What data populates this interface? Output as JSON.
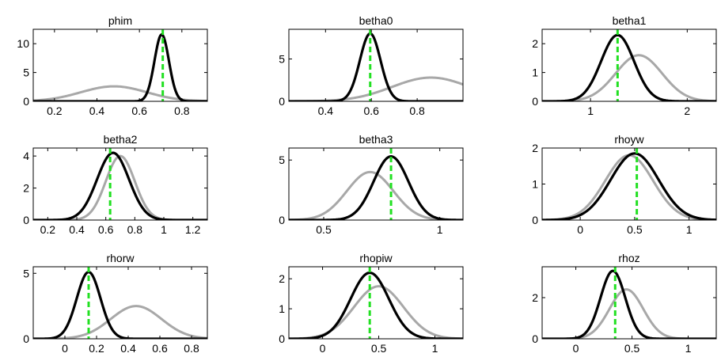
{
  "colors": {
    "posterior": "#000000",
    "prior": "#a8a8a8",
    "mode": "#22e022"
  },
  "chart_data": [
    {
      "type": "line",
      "title": "phim",
      "xlim": [
        0.1,
        0.92
      ],
      "ylim": [
        0,
        12.5
      ],
      "xticks": [
        0.2,
        0.4,
        0.6,
        0.8
      ],
      "xtick_labels": [
        "0.2",
        "0.4",
        "0.6",
        "0.8"
      ],
      "yticks": [
        0,
        5,
        10
      ],
      "ytick_labels": [
        "0",
        "5",
        "10"
      ],
      "mode_line": 0.71,
      "series": [
        {
          "role": "prior",
          "kind": "gauss",
          "mu": 0.48,
          "sigma": 0.155,
          "peak": 2.6
        },
        {
          "role": "posterior",
          "kind": "gauss",
          "mu": 0.705,
          "sigma": 0.034,
          "peak": 11.6
        }
      ]
    },
    {
      "type": "line",
      "title": "betha0",
      "xlim": [
        0.24,
        1.0
      ],
      "ylim": [
        0,
        8.5
      ],
      "xticks": [
        0.4,
        0.6,
        0.8
      ],
      "xtick_labels": [
        "0.4",
        "0.6",
        "0.8"
      ],
      "yticks": [
        0,
        5
      ],
      "ytick_labels": [
        "0",
        "5"
      ],
      "mode_line": 0.595,
      "series": [
        {
          "role": "prior",
          "kind": "gauss",
          "mu": 0.86,
          "sigma": 0.17,
          "peak": 2.8
        },
        {
          "role": "posterior",
          "kind": "gauss",
          "mu": 0.595,
          "sigma": 0.045,
          "peak": 8.0
        }
      ]
    },
    {
      "type": "line",
      "title": "betha1",
      "xlim": [
        0.5,
        2.3
      ],
      "ylim": [
        0,
        2.5
      ],
      "xticks": [
        1,
        2
      ],
      "xtick_labels": [
        "1",
        "2"
      ],
      "yticks": [
        0,
        1,
        2
      ],
      "ytick_labels": [
        "0",
        "1",
        "2"
      ],
      "mode_line": 1.28,
      "series": [
        {
          "role": "prior",
          "kind": "gauss",
          "mu": 1.5,
          "sigma": 0.24,
          "peak": 1.6
        },
        {
          "role": "posterior",
          "kind": "gauss",
          "mu": 1.28,
          "sigma": 0.17,
          "peak": 2.3
        }
      ]
    },
    {
      "type": "line",
      "title": "betha2",
      "xlim": [
        0.1,
        1.3
      ],
      "ylim": [
        0,
        4.5
      ],
      "xticks": [
        0.2,
        0.4,
        0.6,
        0.8,
        1,
        1.2
      ],
      "xtick_labels": [
        "0.2",
        "0.4",
        "0.6",
        "0.8",
        "1",
        "1.2"
      ],
      "yticks": [
        0,
        2,
        4
      ],
      "ytick_labels": [
        "0",
        "2",
        "4"
      ],
      "mode_line": 0.63,
      "series": [
        {
          "role": "prior",
          "kind": "gauss",
          "mu": 0.7,
          "sigma": 0.1,
          "peak": 4.0
        },
        {
          "role": "posterior",
          "kind": "gauss",
          "mu": 0.65,
          "sigma": 0.11,
          "peak": 4.2
        }
      ]
    },
    {
      "type": "line",
      "title": "betha3",
      "xlim": [
        0.35,
        1.1
      ],
      "ylim": [
        0,
        6
      ],
      "xticks": [
        0.5,
        1
      ],
      "xtick_labels": [
        "0.5",
        "1"
      ],
      "yticks": [
        0,
        5
      ],
      "ytick_labels": [
        "0",
        "5"
      ],
      "mode_line": 0.79,
      "series": [
        {
          "role": "prior",
          "kind": "gauss",
          "mu": 0.7,
          "sigma": 0.1,
          "peak": 4.0
        },
        {
          "role": "posterior",
          "kind": "gauss",
          "mu": 0.79,
          "sigma": 0.075,
          "peak": 5.3
        }
      ]
    },
    {
      "type": "line",
      "title": "rhoyw",
      "xlim": [
        -0.35,
        1.25
      ],
      "ylim": [
        0,
        2
      ],
      "xticks": [
        0,
        0.5,
        1
      ],
      "xtick_labels": [
        "0",
        "0.5",
        "1"
      ],
      "yticks": [
        0,
        1,
        2
      ],
      "ytick_labels": [
        "0",
        "1",
        "2"
      ],
      "mode_line": 0.52,
      "series": [
        {
          "role": "prior",
          "kind": "gauss",
          "mu": 0.45,
          "sigma": 0.22,
          "peak": 1.8
        },
        {
          "role": "posterior",
          "kind": "gauss",
          "mu": 0.5,
          "sigma": 0.22,
          "peak": 1.85
        }
      ]
    },
    {
      "type": "line",
      "title": "rhorw",
      "xlim": [
        -0.2,
        0.9
      ],
      "ylim": [
        0,
        5.5
      ],
      "xticks": [
        0,
        0.2,
        0.4,
        0.6,
        0.8
      ],
      "xtick_labels": [
        "0",
        "0.2",
        "0.4",
        "0.6",
        "0.8"
      ],
      "yticks": [
        0,
        5
      ],
      "ytick_labels": [
        "0",
        "5"
      ],
      "mode_line": 0.15,
      "series": [
        {
          "role": "prior",
          "kind": "gauss",
          "mu": 0.45,
          "sigma": 0.16,
          "peak": 2.5
        },
        {
          "role": "posterior",
          "kind": "gauss",
          "mu": 0.15,
          "sigma": 0.075,
          "peak": 5.1
        }
      ]
    },
    {
      "type": "line",
      "title": "rhopiw",
      "xlim": [
        -0.3,
        1.25
      ],
      "ylim": [
        0,
        2.4
      ],
      "xticks": [
        0,
        0.5,
        1
      ],
      "xtick_labels": [
        "0",
        "0.5",
        "1"
      ],
      "yticks": [
        0,
        1,
        2
      ],
      "ytick_labels": [
        "0",
        "1",
        "2"
      ],
      "mode_line": 0.42,
      "series": [
        {
          "role": "prior",
          "kind": "gauss",
          "mu": 0.5,
          "sigma": 0.22,
          "peak": 1.75
        },
        {
          "role": "posterior",
          "kind": "gauss",
          "mu": 0.42,
          "sigma": 0.17,
          "peak": 2.2
        }
      ]
    },
    {
      "type": "line",
      "title": "rhoz",
      "xlim": [
        -0.3,
        1.25
      ],
      "ylim": [
        0,
        3.5
      ],
      "xticks": [
        0,
        0.5,
        1
      ],
      "xtick_labels": [
        "0",
        "0.5",
        "1"
      ],
      "yticks": [
        0,
        2
      ],
      "ytick_labels": [
        "0",
        "2"
      ],
      "mode_line": 0.35,
      "series": [
        {
          "role": "prior",
          "kind": "gauss",
          "mu": 0.45,
          "sigma": 0.15,
          "peak": 2.4
        },
        {
          "role": "posterior",
          "kind": "gauss",
          "mu": 0.33,
          "sigma": 0.11,
          "peak": 3.3
        }
      ]
    }
  ]
}
